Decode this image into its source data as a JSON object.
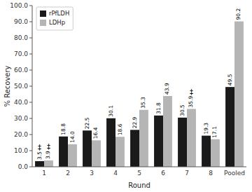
{
  "chart_data": {
    "type": "bar",
    "xlabel": "Round",
    "ylabel": "% Recovery",
    "categories": [
      "1",
      "2",
      "3",
      "4",
      "5",
      "6",
      "7",
      "8",
      "Pooled"
    ],
    "series": [
      {
        "name": "rPfLDH",
        "color": "#1a1a1a",
        "values": [
          3.5,
          18.8,
          22.5,
          30.1,
          22.9,
          31.8,
          30.5,
          19.3,
          49.5
        ]
      },
      {
        "name": "LDHp",
        "color": "#b5b5b5",
        "values": [
          3.9,
          14.0,
          16.4,
          18.6,
          35.3,
          43.9,
          35.9,
          17.1,
          90.2
        ],
        "value_labels": [
          "3.9",
          "14.0",
          "16.4",
          "18.6",
          "35.3",
          "43.9",
          "35.9",
          "17.1",
          "90.2"
        ]
      }
    ],
    "ylim": [
      0,
      100
    ],
    "yticks": [
      {
        "value": 0,
        "label": "0.0"
      },
      {
        "value": 10,
        "label": "10.0"
      },
      {
        "value": 20,
        "label": "20.0"
      },
      {
        "value": 30,
        "label": "30.0"
      },
      {
        "value": 40,
        "label": "40.0"
      },
      {
        "value": 50,
        "label": "50.0"
      },
      {
        "value": 60,
        "label": "60.0"
      },
      {
        "value": 70,
        "label": "70.0"
      },
      {
        "value": 80,
        "label": "80.0"
      },
      {
        "value": 90,
        "label": "90.0"
      },
      {
        "value": 100,
        "label": "100.0"
      }
    ],
    "annotations": [
      {
        "text": "‡",
        "series": "rPfLDH",
        "category": "1"
      },
      {
        "text": "‡",
        "series": "LDHp",
        "category": "1"
      },
      {
        "text": "‡",
        "series": "LDHp",
        "category": "7"
      }
    ],
    "data_labels": true,
    "legend": "upper left",
    "grid": false
  }
}
